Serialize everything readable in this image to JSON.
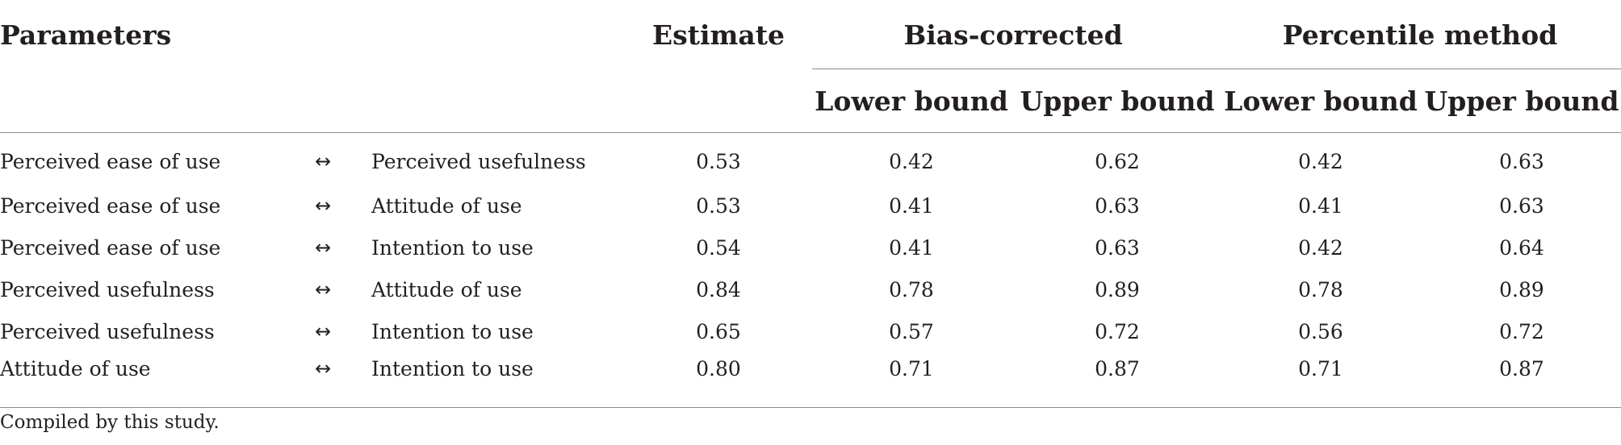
{
  "table": {
    "headers": {
      "parameters": "Parameters",
      "estimate": "Estimate",
      "bias_corrected": "Bias-corrected",
      "percentile_method": "Percentile method",
      "lower_bound": "Lower bound",
      "upper_bound": "Upper bound"
    },
    "rows": [
      {
        "from": "Perceived ease of use",
        "arrow": "↔",
        "to": "Perceived usefulness",
        "estimate": "0.53",
        "bc_lower": "0.42",
        "bc_upper": "0.62",
        "pm_lower": "0.42",
        "pm_upper": "0.63"
      },
      {
        "from": "Perceived ease of use",
        "arrow": "↔",
        "to": "Attitude of use",
        "estimate": "0.53",
        "bc_lower": "0.41",
        "bc_upper": "0.63",
        "pm_lower": "0.41",
        "pm_upper": "0.63"
      },
      {
        "from": "Perceived ease of use",
        "arrow": "↔",
        "to": "Intention to use",
        "estimate": "0.54",
        "bc_lower": "0.41",
        "bc_upper": "0.63",
        "pm_lower": "0.42",
        "pm_upper": "0.64"
      },
      {
        "from": "Perceived usefulness",
        "arrow": "↔",
        "to": "Attitude of use",
        "estimate": "0.84",
        "bc_lower": "0.78",
        "bc_upper": "0.89",
        "pm_lower": "0.78",
        "pm_upper": "0.89"
      },
      {
        "from": "Perceived usefulness",
        "arrow": "↔",
        "to": "Intention to use",
        "estimate": "0.65",
        "bc_lower": "0.57",
        "bc_upper": "0.72",
        "pm_lower": "0.56",
        "pm_upper": "0.72"
      },
      {
        "from": "Attitude of use",
        "arrow": "↔",
        "to": "Intention to use",
        "estimate": "0.80",
        "bc_lower": "0.71",
        "bc_upper": "0.87",
        "pm_lower": "0.71",
        "pm_upper": "0.87"
      }
    ],
    "note": "Compiled by this study."
  }
}
